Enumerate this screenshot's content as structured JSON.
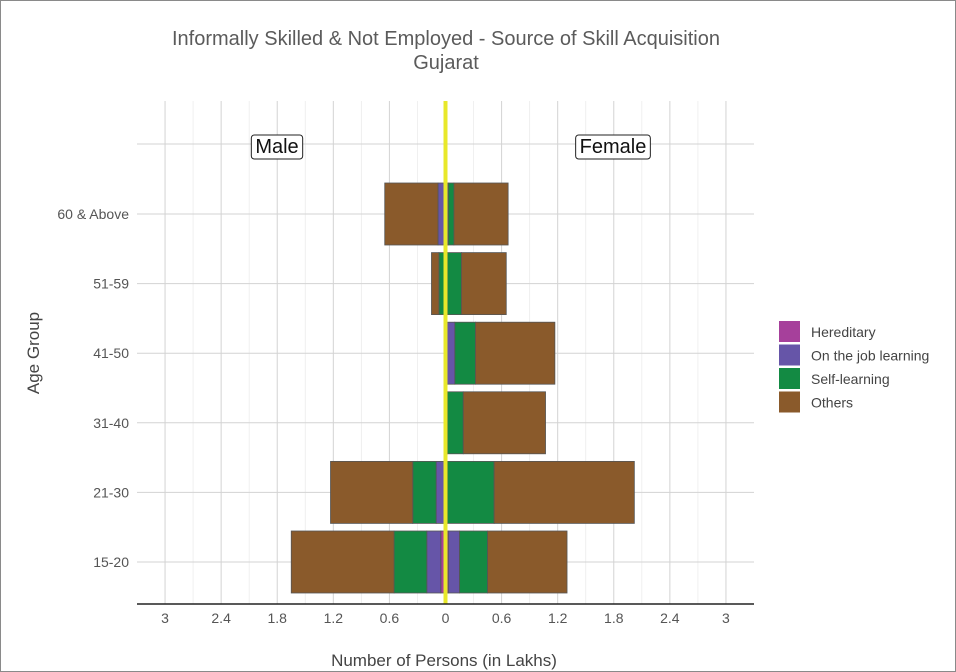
{
  "chart_data": {
    "type": "bar",
    "orientation": "horizontal",
    "layout": "population-pyramid",
    "title": "Informally Skilled & Not Employed - Source of Skill Acquisition",
    "subtitle": "Gujarat",
    "xlabel": "Number of Persons (in Lakhs)",
    "ylabel": "Age Group",
    "xlim": [
      -3.3,
      3.3
    ],
    "x_ticks": [
      -3,
      -2.4,
      -1.8,
      -1.2,
      -0.6,
      0,
      0.6,
      1.2,
      1.8,
      2.4,
      3
    ],
    "x_tick_labels": [
      "3",
      "2.4",
      "1.8",
      "1.2",
      "0.6",
      "0",
      "0.6",
      "1.2",
      "1.8",
      "2.4",
      "3"
    ],
    "categories": [
      "15-20",
      "21-30",
      "31-40",
      "41-50",
      "51-59",
      "60 & Above"
    ],
    "groups": [
      "Male",
      "Female"
    ],
    "series_order": [
      "Hereditary",
      "On the job learning",
      "Self-learning",
      "Others"
    ],
    "series": [
      {
        "name": "Hereditary",
        "color": "#a6409b",
        "male": [
          0.05,
          0,
          0,
          0,
          0,
          0
        ],
        "female": [
          0.03,
          0,
          0,
          0,
          0,
          0
        ]
      },
      {
        "name": "On the job learning",
        "color": "#6655a8",
        "male": [
          0.15,
          0.1,
          0,
          0,
          0,
          0.08
        ],
        "female": [
          0.12,
          0.02,
          0.02,
          0.1,
          0.02,
          0.03
        ]
      },
      {
        "name": "Self-learning",
        "color": "#138a43",
        "male": [
          0.35,
          0.25,
          0,
          0,
          0.07,
          0
        ],
        "female": [
          0.3,
          0.5,
          0.17,
          0.22,
          0.15,
          0.06
        ]
      },
      {
        "name": "Others",
        "color": "#8a5a2b",
        "male": [
          1.1,
          0.88,
          0,
          0,
          0.08,
          0.57
        ],
        "female": [
          0.85,
          1.5,
          0.88,
          0.85,
          0.48,
          0.58
        ]
      }
    ],
    "reference_line": {
      "x": 0,
      "color": "#e8e82a"
    },
    "annotations": [
      {
        "text": "Male",
        "side": "left"
      },
      {
        "text": "Female",
        "side": "right"
      }
    ],
    "legend": {
      "placement": "right"
    },
    "grid": true
  }
}
